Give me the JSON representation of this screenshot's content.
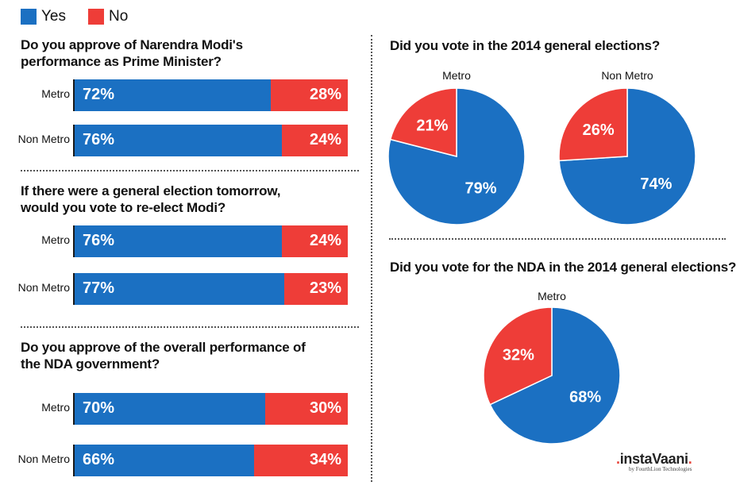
{
  "legend": {
    "yes": "Yes",
    "no": "No"
  },
  "colors": {
    "yes": "#1b70c2",
    "no": "#ee3d38"
  },
  "chart_data": [
    {
      "type": "bar",
      "orientation": "horizontal-stacked-100",
      "title_lines": [
        "Do you approve of Narendra Modi's",
        "performance as Prime Minister?"
      ],
      "categories": [
        "Metro",
        "Non Metro"
      ],
      "series": [
        {
          "name": "Yes",
          "values": [
            72,
            76
          ],
          "labels": [
            "72%",
            "76%"
          ]
        },
        {
          "name": "No",
          "values": [
            28,
            24
          ],
          "labels": [
            "28%",
            "24%"
          ]
        }
      ]
    },
    {
      "type": "bar",
      "orientation": "horizontal-stacked-100",
      "title_lines": [
        "If there were a general election tomorrow,",
        "would you vote to re-elect Modi?"
      ],
      "categories": [
        "Metro",
        "Non Metro"
      ],
      "series": [
        {
          "name": "Yes",
          "values": [
            76,
            77
          ],
          "labels": [
            "76%",
            "77%"
          ]
        },
        {
          "name": "No",
          "values": [
            24,
            23
          ],
          "labels": [
            "24%",
            "23%"
          ]
        }
      ]
    },
    {
      "type": "bar",
      "orientation": "horizontal-stacked-100",
      "title_lines": [
        "Do you approve of the overall performance of",
        "the NDA government?"
      ],
      "categories": [
        "Metro",
        "Non Metro"
      ],
      "series": [
        {
          "name": "Yes",
          "values": [
            70,
            66
          ],
          "labels": [
            "70%",
            "66%"
          ]
        },
        {
          "name": "No",
          "values": [
            30,
            34
          ],
          "labels": [
            "30%",
            "34%"
          ]
        }
      ]
    },
    {
      "type": "pie",
      "title": "Did you vote in the 2014 general elections?",
      "pies": [
        {
          "label": "Metro",
          "slices": [
            {
              "name": "Yes",
              "value": 79,
              "label": "79%"
            },
            {
              "name": "No",
              "value": 21,
              "label": "21%"
            }
          ]
        },
        {
          "label": "Non Metro",
          "slices": [
            {
              "name": "Yes",
              "value": 74,
              "label": "74%"
            },
            {
              "name": "No",
              "value": 26,
              "label": "26%"
            }
          ]
        }
      ]
    },
    {
      "type": "pie",
      "title": "Did you vote for the NDA in the 2014 general elections?",
      "pies": [
        {
          "label": "Metro",
          "slices": [
            {
              "name": "Yes",
              "value": 68,
              "label": "68%"
            },
            {
              "name": "No",
              "value": 32,
              "label": "32%"
            }
          ]
        }
      ]
    }
  ],
  "brand": {
    "prefix": ".",
    "name": "instaVaani",
    "suffix": ".",
    "tagline": "by FourthLion Technologies"
  }
}
